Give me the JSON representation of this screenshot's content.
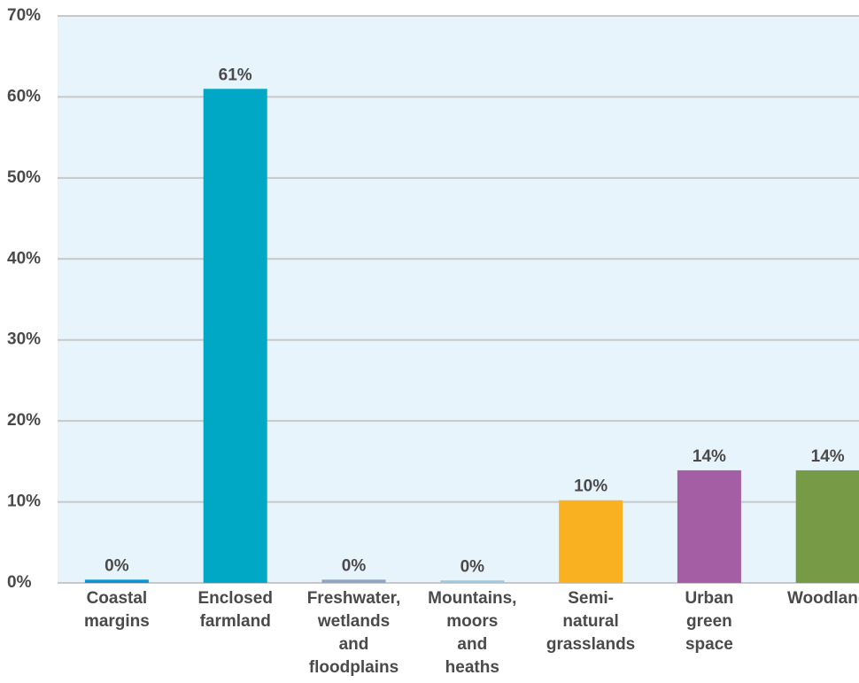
{
  "chart_data": {
    "type": "bar",
    "categories": [
      [
        "Coastal",
        "margins"
      ],
      [
        "Enclosed",
        "farmland"
      ],
      [
        "Freshwater,",
        "wetlands",
        "and",
        "floodplains"
      ],
      [
        "Mountains,",
        "moors",
        "and",
        "heaths"
      ],
      [
        "Semi-",
        "natural",
        "grasslands"
      ],
      [
        "Urban",
        "green",
        "space"
      ],
      [
        "Woodland"
      ]
    ],
    "values": [
      0.4,
      61,
      0.4,
      0.3,
      10.2,
      13.9,
      13.9
    ],
    "data_labels": [
      "0%",
      "61%",
      "0%",
      "0%",
      "10%",
      "14%",
      "14%"
    ],
    "colors": [
      "#0a96d4",
      "#00a8c6",
      "#8fa4c7",
      "#9cc8e3",
      "#f9b122",
      "#a35ea4",
      "#769a45"
    ],
    "ylim": [
      0,
      70
    ],
    "yticks": [
      0,
      10,
      20,
      30,
      40,
      50,
      60,
      70
    ],
    "ytick_labels": [
      "0%",
      "10%",
      "20%",
      "30%",
      "40%",
      "50%",
      "60%",
      "70%"
    ],
    "grid": true,
    "plot_background": "#e8f4fb",
    "grid_color": "#c8c8c8",
    "title": "",
    "xlabel": "",
    "ylabel": ""
  }
}
